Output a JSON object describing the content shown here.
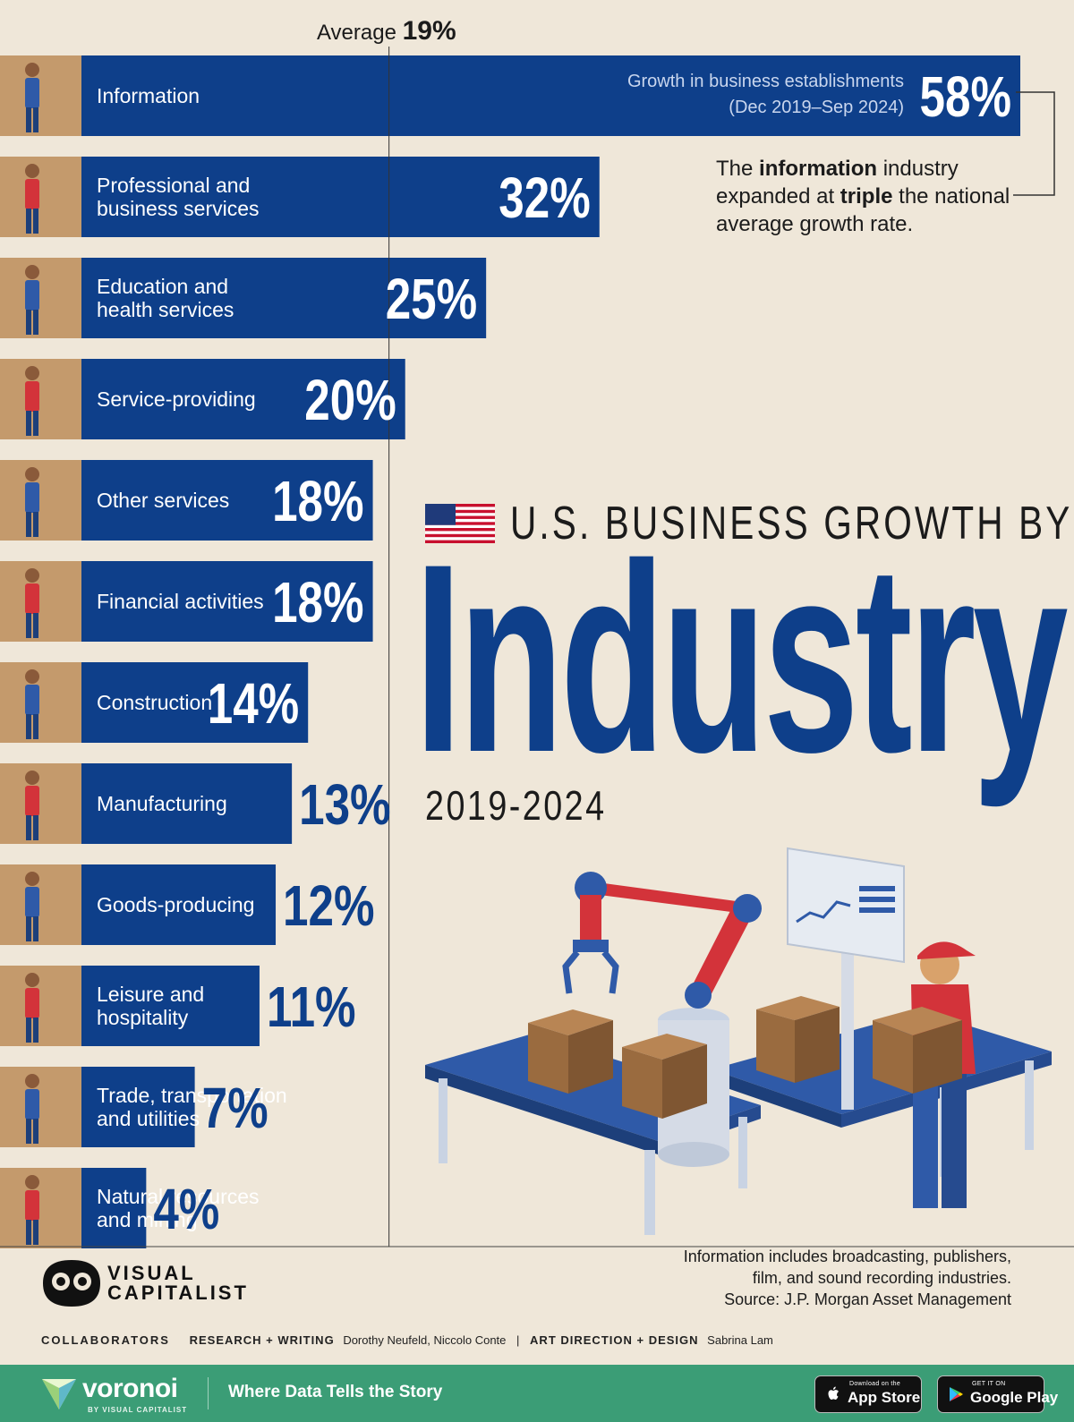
{
  "chart_data": {
    "type": "bar",
    "orientation": "horizontal",
    "categories": [
      "Information",
      "Professional and\nbusiness services",
      "Education and\nhealth services",
      "Service-providing",
      "Other services",
      "Financial activities",
      "Construction",
      "Manufacturing",
      "Goods-producing",
      "Leisure and\nhospitality",
      "Trade, transportation\nand utilities",
      "Natural resources\nand mining"
    ],
    "values": [
      58,
      32,
      25,
      20,
      18,
      18,
      14,
      13,
      12,
      11,
      7,
      4
    ],
    "value_labels": [
      "58%",
      "32%",
      "25%",
      "20%",
      "18%",
      "18%",
      "14%",
      "13%",
      "12%",
      "11%",
      "7%",
      "4%"
    ],
    "unit": "%",
    "series_label_line1": "Growth in business establishments",
    "series_label_line2": "(Dec 2019–Sep 2024)",
    "average": {
      "label": "Average",
      "value": 19,
      "value_label": "19%"
    },
    "xlim": [
      0,
      58
    ],
    "grid": false,
    "bar_color": "#0e3f8a"
  },
  "title": {
    "line1": "U.S. BUSINESS GROWTH BY",
    "big": "Industry",
    "years": "2019-2024"
  },
  "callout": {
    "p1": "The ",
    "b1": "information",
    "p2": " industry expanded at ",
    "b2": "triple",
    "p3": " the national average growth rate."
  },
  "footnote": {
    "line1": "Information includes broadcasting, publishers,",
    "line2": "film, and sound recording industries.",
    "line3": "Source: J.P. Morgan Asset Management"
  },
  "brand": {
    "line1": "VISUAL",
    "line2": "CAPITALIST"
  },
  "credits": {
    "collaborators": "COLLABORATORS",
    "research_key": "RESEARCH + WRITING",
    "research_names": "Dorothy Neufeld, Niccolo Conte",
    "separator": "|",
    "art_key": "ART DIRECTION + DESIGN",
    "art_names": "Sabrina Lam"
  },
  "footer": {
    "voronoi": "voronoi",
    "voronoi_sub": "BY VISUAL CAPITALIST",
    "tagline": "Where Data Tells the Story",
    "appstore_small": "Download on the",
    "appstore_big": "App Store",
    "googleplay_small": "GET IT ON",
    "googleplay_big": "Google Play"
  },
  "colors": {
    "background": "#efe7d9",
    "bar": "#0e3f8a",
    "icon_tile": "#c49a6c",
    "footer": "#3b9d76"
  }
}
